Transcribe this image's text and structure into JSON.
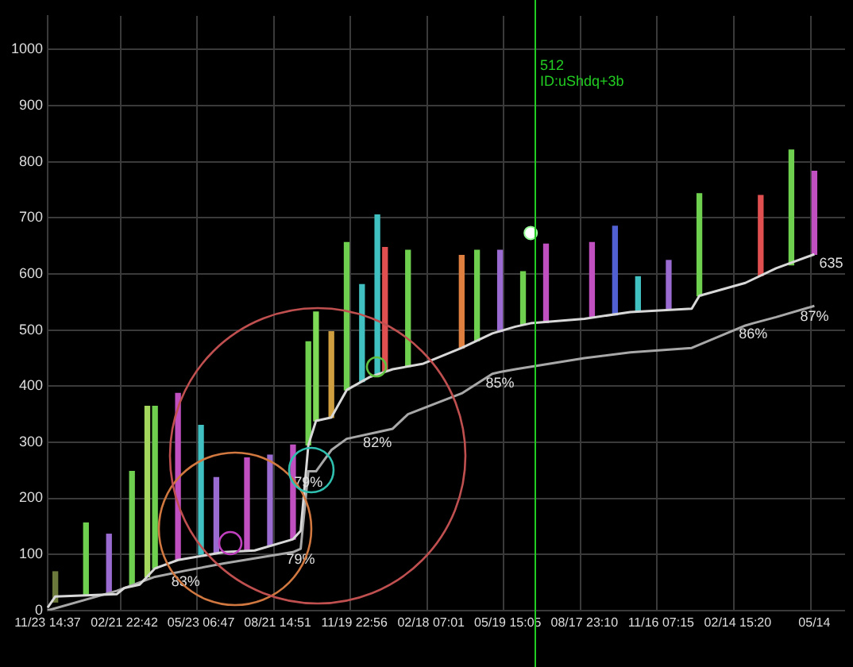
{
  "chart_data": {
    "type": "line",
    "categories": [
      "11/23 14:37",
      null,
      null,
      null,
      null,
      null,
      null,
      null,
      null,
      null,
      "02/21 22:42",
      null,
      null,
      null,
      null,
      null,
      null,
      null,
      null,
      null,
      "05/23 06:47",
      null,
      null,
      null,
      null,
      null,
      null,
      null,
      null,
      null,
      "08/21 14:51",
      null,
      null,
      null,
      null,
      null,
      null,
      null,
      null,
      null,
      "11/19 22:56",
      null,
      null,
      null,
      null,
      null,
      null,
      null,
      null,
      null,
      "02/18 07:01",
      null,
      null,
      null,
      null,
      null,
      null,
      null,
      null,
      null,
      "05/19 15:05",
      null,
      null,
      null,
      null,
      null,
      null,
      null,
      null,
      null,
      "08/17 23:10",
      null,
      null,
      null,
      null,
      null,
      null,
      null,
      null,
      null,
      "11/16 07:15",
      null,
      null,
      null,
      null,
      null,
      null,
      null,
      null,
      null,
      "02/14 15:20",
      null,
      null,
      null,
      null,
      null,
      null,
      null,
      null,
      null,
      "05/14",
      null,
      null,
      null,
      null
    ],
    "ylim": [
      0,
      1060
    ],
    "yticks": [
      0,
      100,
      200,
      300,
      400,
      500,
      600,
      700,
      800,
      900,
      1000
    ],
    "grid": true,
    "legend": false,
    "marker": "none",
    "series": [
      {
        "type": "bar",
        "base": [
          null,
          15,
          null,
          null,
          null,
          29,
          null,
          null,
          29,
          null,
          null,
          43,
          null,
          60,
          75,
          null,
          null,
          90,
          null,
          null,
          100,
          null,
          104,
          null,
          null,
          null,
          106,
          null,
          null,
          115,
          null,
          null,
          127,
          null,
          295,
          338,
          null,
          344,
          null,
          393,
          null,
          408,
          null,
          420,
          427,
          null,
          null,
          435,
          null,
          null,
          null,
          null,
          null,
          null,
          468,
          null,
          481,
          null,
          null,
          497,
          null,
          null,
          509,
          null,
          null,
          513,
          null,
          null,
          null,
          null,
          null,
          522,
          null,
          null,
          527,
          null,
          null,
          533,
          null,
          null,
          null,
          536,
          null,
          null,
          null,
          561,
          null,
          null,
          null,
          null,
          null,
          null,
          null,
          597,
          null,
          null,
          null,
          616,
          null,
          null,
          635,
          null,
          null,
          null,
          null
        ],
        "values": [
          null,
          54,
          null,
          null,
          null,
          127,
          null,
          null,
          107,
          null,
          null,
          205,
          null,
          304,
          289,
          null,
          null,
          297,
          null,
          null,
          230,
          null,
          133,
          null,
          null,
          null,
          166,
          null,
          null,
          162,
          null,
          null,
          168,
          null,
          184,
          194,
          null,
          153,
          null,
          263,
          null,
          173,
          null,
          285,
          220,
          null,
          null,
          207,
          null,
          null,
          null,
          null,
          null,
          null,
          165,
          null,
          161,
          null,
          null,
          145,
          null,
          null,
          95,
          null,
          null,
          140,
          null,
          null,
          null,
          null,
          null,
          134,
          null,
          null,
          158,
          null,
          null,
          62,
          null,
          null,
          null,
          88,
          null,
          null,
          null,
          182,
          null,
          null,
          null,
          null,
          null,
          null,
          null,
          143,
          null,
          null,
          null,
          205,
          null,
          null,
          148,
          null,
          null,
          null,
          null
        ],
        "colors": [
          null,
          "#6b7a3a",
          null,
          null,
          null,
          "#6fcf4f",
          null,
          null,
          "#9a6bd0",
          null,
          null,
          "#6fcf4f",
          null,
          "#a4d65e",
          "#6fcf4f",
          null,
          null,
          "#c050c0",
          null,
          null,
          "#40c0c0",
          null,
          "#9a6bd0",
          null,
          null,
          null,
          "#c050c0",
          null,
          null,
          "#9a6bd0",
          null,
          null,
          "#c050c0",
          null,
          "#6fcf4f",
          "#7ed957",
          null,
          "#d0a040",
          null,
          "#6fcf4f",
          null,
          "#40c0c0",
          null,
          "#40c0c0",
          "#e05050",
          null,
          null,
          "#6fcf4f",
          null,
          null,
          null,
          null,
          null,
          null,
          "#e08040",
          null,
          "#6fcf4f",
          null,
          null,
          "#9a6bd0",
          null,
          null,
          "#6fcf4f",
          null,
          null,
          "#c050c0",
          null,
          null,
          null,
          null,
          null,
          "#c050c0",
          null,
          null,
          "#5060d0",
          null,
          null,
          "#40c0c0",
          null,
          null,
          null,
          "#9a6bd0",
          null,
          null,
          null,
          "#6fcf4f",
          null,
          null,
          null,
          null,
          null,
          null,
          null,
          "#e05050",
          null,
          null,
          null,
          "#6fcf4f",
          null,
          null,
          "#c050c0",
          null,
          null,
          null,
          null
        ]
      },
      {
        "color": "#d8d8d8",
        "values": [
          5,
          25,
          null,
          null,
          null,
          null,
          null,
          null,
          null,
          29,
          40,
          null,
          46,
          null,
          75,
          null,
          null,
          90,
          null,
          null,
          null,
          null,
          null,
          104,
          null,
          null,
          null,
          107,
          null,
          null,
          null,
          null,
          127,
          142,
          295,
          338,
          null,
          344,
          null,
          393,
          null,
          null,
          416,
          null,
          null,
          430,
          null,
          null,
          null,
          440,
          null,
          null,
          null,
          null,
          468,
          null,
          null,
          null,
          494,
          null,
          null,
          506,
          null,
          512,
          null,
          null,
          null,
          null,
          null,
          null,
          520,
          null,
          null,
          null,
          null,
          null,
          532,
          null,
          null,
          null,
          null,
          null,
          null,
          null,
          538,
          561,
          null,
          null,
          null,
          null,
          null,
          584,
          null,
          null,
          null,
          610,
          null,
          null,
          null,
          null,
          635,
          null,
          null,
          null,
          null
        ],
        "value_labels": [
          null,
          null,
          null,
          null,
          null,
          null,
          null,
          null,
          null,
          null,
          null,
          null,
          null,
          null,
          null,
          null,
          null,
          null,
          null,
          null,
          null,
          null,
          null,
          null,
          null,
          null,
          null,
          null,
          null,
          null,
          null,
          null,
          null,
          null,
          null,
          null,
          null,
          null,
          null,
          null,
          null,
          null,
          null,
          null,
          null,
          null,
          null,
          null,
          null,
          null,
          null,
          null,
          null,
          null,
          null,
          null,
          null,
          null,
          null,
          null,
          null,
          null,
          null,
          null,
          null,
          null,
          null,
          null,
          null,
          null,
          null,
          null,
          null,
          null,
          null,
          null,
          null,
          null,
          null,
          null,
          null,
          null,
          null,
          null,
          null,
          null,
          null,
          null,
          null,
          null,
          null,
          null,
          null,
          null,
          null,
          null,
          null,
          null,
          null,
          null,
          "635",
          null,
          null,
          null,
          null
        ]
      },
      {
        "color": "#a8a8a8",
        "values": [
          0,
          null,
          null,
          null,
          null,
          null,
          null,
          null,
          null,
          35,
          null,
          null,
          null,
          null,
          60,
          null,
          null,
          null,
          71,
          null,
          null,
          null,
          null,
          84,
          null,
          null,
          null,
          null,
          null,
          null,
          null,
          null,
          104,
          110,
          248,
          248,
          null,
          286,
          null,
          306,
          null,
          null,
          null,
          318,
          null,
          324,
          null,
          350,
          null,
          null,
          null,
          null,
          null,
          null,
          387,
          null,
          null,
          null,
          422,
          425,
          null,
          430,
          null,
          null,
          null,
          null,
          null,
          null,
          null,
          null,
          450,
          null,
          null,
          null,
          null,
          null,
          460,
          null,
          null,
          null,
          null,
          null,
          null,
          null,
          468,
          null,
          null,
          null,
          null,
          null,
          null,
          508,
          512,
          null,
          null,
          523,
          null,
          null,
          null,
          null,
          543,
          null,
          null,
          null,
          null
        ]
      },
      {
        "type": "scatter",
        "color": "#ffffff",
        "marker": "circle",
        "values": [
          null,
          null,
          null,
          null,
          null,
          null,
          null,
          null,
          null,
          null,
          null,
          null,
          null,
          null,
          null,
          null,
          null,
          null,
          null,
          null,
          null,
          null,
          null,
          null,
          null,
          null,
          null,
          null,
          null,
          null,
          null,
          null,
          null,
          null,
          null,
          null,
          null,
          null,
          null,
          null,
          null,
          null,
          null,
          null,
          null,
          null,
          null,
          null,
          null,
          null,
          null,
          null,
          null,
          null,
          null,
          null,
          null,
          null,
          null,
          null,
          null,
          null,
          null,
          673,
          null,
          null,
          null,
          null,
          null,
          null,
          null,
          null,
          null,
          null,
          null,
          null,
          null,
          null,
          null,
          null,
          null,
          null,
          null,
          null,
          null,
          null,
          null,
          null,
          null,
          null,
          null,
          null,
          null,
          null,
          null,
          null,
          null,
          null,
          null,
          null,
          null,
          null,
          null,
          null,
          null
        ]
      }
    ],
    "annotations": [
      "512",
      "ID:uShdq+3b",
      {
        "text": "83%",
        "y": 71
      },
      {
        "text": "79%",
        "y": 110
      },
      {
        "text": "79%",
        "y": 248
      },
      {
        "text": "82%",
        "y": 318
      },
      {
        "text": "85%",
        "y": 425
      },
      {
        "text": "86%",
        "y": 512
      },
      {
        "text": "87%",
        "y": 543
      }
    ]
  }
}
